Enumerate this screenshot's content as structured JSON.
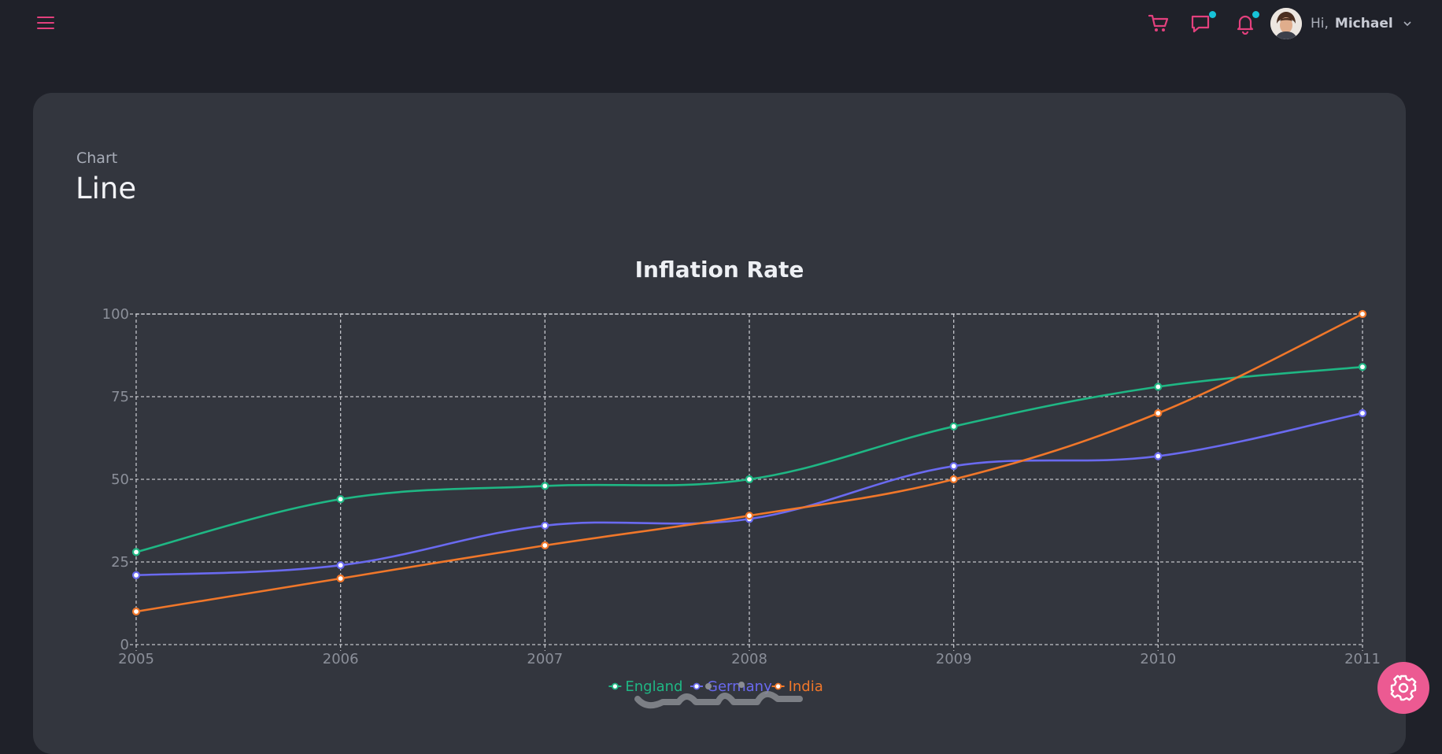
{
  "header": {
    "greeting": "Hi,",
    "user_name": "Michael",
    "icons": [
      "menu-icon",
      "cart-icon",
      "chat-icon",
      "bell-icon",
      "chevron-down-icon"
    ],
    "accent_color": "#e3407d",
    "badge_color": "#17c3d8"
  },
  "page": {
    "subtitle": "Chart",
    "title": "Line"
  },
  "settings": {
    "icon": "gear-icon",
    "color": "#ec5a92"
  },
  "chart_data": {
    "type": "line",
    "title": "Inflation Rate",
    "xlabel": "",
    "ylabel": "",
    "x": [
      "2005",
      "2006",
      "2007",
      "2008",
      "2009",
      "2010",
      "2011"
    ],
    "ylim": [
      0,
      100
    ],
    "y_ticks": [
      "0",
      "25",
      "50",
      "75",
      "100"
    ],
    "grid": true,
    "legend_position": "bottom",
    "series": [
      {
        "name": "England",
        "color": "#1fb784",
        "values": [
          28,
          44,
          48,
          50,
          66,
          78,
          84
        ]
      },
      {
        "name": "Germany",
        "color": "#6a6af0",
        "values": [
          21,
          24,
          36,
          38,
          54,
          57,
          70
        ]
      },
      {
        "name": "India",
        "color": "#f0772a",
        "values": [
          10,
          20,
          30,
          39,
          50,
          70,
          100
        ]
      }
    ]
  }
}
